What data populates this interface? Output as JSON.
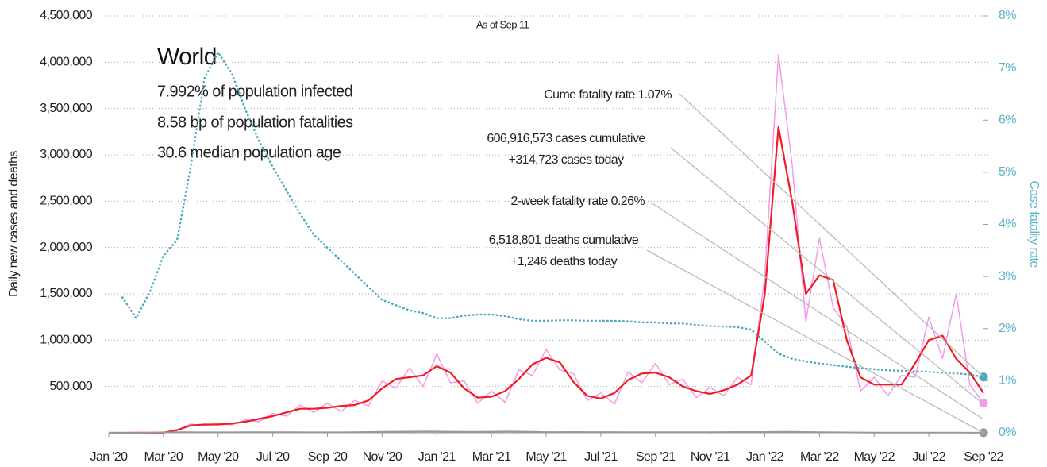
{
  "chart_data": {
    "type": "line",
    "subtitle": "As of Sep 11",
    "ylabel": "Daily new cases and deaths",
    "y2label": "Case fatality rate",
    "info": {
      "title": "World",
      "lines": [
        "7.992% of population infected",
        "8.58 bp of population fatalities",
        "30.6 median population age"
      ]
    },
    "annotations": [
      {
        "lines": [
          "Cume fatality rate 1.07%"
        ]
      },
      {
        "lines": [
          "606,916,573 cases cumulative",
          "+314,723 cases today"
        ]
      },
      {
        "lines": [
          "2-week fatality rate 0.26%"
        ]
      },
      {
        "lines": [
          "6,518,801 deaths cumulative",
          "+1,246 deaths today"
        ]
      }
    ],
    "x": [
      0,
      0.5,
      1,
      1.5,
      2,
      2.5,
      3,
      3.5,
      4,
      4.5,
      5,
      5.5,
      6,
      6.5,
      7,
      7.5,
      8,
      8.5,
      9,
      9.5,
      10,
      10.5,
      11,
      11.5,
      12,
      12.5,
      13,
      13.5,
      14,
      14.5,
      15,
      15.5,
      16,
      16.5,
      17,
      17.5,
      18,
      18.5,
      19,
      19.5,
      20,
      20.5,
      21,
      21.5,
      22,
      22.5,
      23,
      23.5,
      24,
      24.5,
      25,
      25.5,
      26,
      26.5,
      27,
      27.5,
      28,
      28.5,
      29,
      29.5,
      30,
      30.5,
      31,
      31.5,
      32
    ],
    "xlim": [
      0,
      32
    ],
    "xticks": [
      {
        "value": 0,
        "label": "Jan '20"
      },
      {
        "value": 2,
        "label": "Mar '20"
      },
      {
        "value": 4,
        "label": "May '20"
      },
      {
        "value": 6,
        "label": "Jul '20"
      },
      {
        "value": 8,
        "label": "Sep '20"
      },
      {
        "value": 10,
        "label": "Nov '20"
      },
      {
        "value": 12,
        "label": "Jan '21"
      },
      {
        "value": 14,
        "label": "Mar '21"
      },
      {
        "value": 16,
        "label": "May '21"
      },
      {
        "value": 18,
        "label": "Jul '21"
      },
      {
        "value": 20,
        "label": "Sep '21"
      },
      {
        "value": 22,
        "label": "Nov '21"
      },
      {
        "value": 24,
        "label": "Jan '22"
      },
      {
        "value": 26,
        "label": "Mar '22"
      },
      {
        "value": 28,
        "label": "May '22"
      },
      {
        "value": 30,
        "label": "Jul '22"
      },
      {
        "value": 32,
        "label": "Sep '22"
      }
    ],
    "ylim": [
      0,
      4500000
    ],
    "yticks": [
      {
        "value": 500000,
        "label": "500,000"
      },
      {
        "value": 1000000,
        "label": "1,000,000"
      },
      {
        "value": 1500000,
        "label": "1,500,000"
      },
      {
        "value": 2000000,
        "label": "2,000,000"
      },
      {
        "value": 2500000,
        "label": "2,500,000"
      },
      {
        "value": 3000000,
        "label": "3,000,000"
      },
      {
        "value": 3500000,
        "label": "3,500,000"
      },
      {
        "value": 4000000,
        "label": "4,000,000"
      },
      {
        "value": 4500000,
        "label": "4,500,000"
      }
    ],
    "y2lim": [
      0,
      8
    ],
    "y2ticks": [
      {
        "value": 0,
        "label": "0%"
      },
      {
        "value": 1,
        "label": "1%"
      },
      {
        "value": 2,
        "label": "2%"
      },
      {
        "value": 3,
        "label": "3%"
      },
      {
        "value": 4,
        "label": "4%"
      },
      {
        "value": 5,
        "label": "5%"
      },
      {
        "value": 6,
        "label": "6%"
      },
      {
        "value": 7,
        "label": "7%"
      },
      {
        "value": 8,
        "label": "8%"
      }
    ],
    "grid": true,
    "series": [
      {
        "color": "#f59ae8",
        "width": 1.5,
        "dash": "solid",
        "end_marker": true,
        "values": [
          0,
          0,
          1000,
          1000,
          3000,
          25000,
          95000,
          75000,
          105000,
          85000,
          140000,
          120000,
          210000,
          180000,
          300000,
          220000,
          320000,
          230000,
          350000,
          290000,
          560000,
          480000,
          700000,
          500000,
          850000,
          540000,
          560000,
          320000,
          450000,
          330000,
          680000,
          620000,
          900000,
          680000,
          640000,
          350000,
          430000,
          310000,
          660000,
          540000,
          750000,
          520000,
          580000,
          380000,
          490000,
          400000,
          600000,
          520000,
          1700000,
          4080000,
          2900000,
          1200000,
          2100000,
          1350000,
          1150000,
          450000,
          600000,
          400000,
          620000,
          600000,
          1250000,
          800000,
          1500000,
          520000,
          320000
        ]
      },
      {
        "color": "#ee1c25",
        "width": 2.2,
        "dash": "solid",
        "end_marker": false,
        "values": [
          0,
          0,
          1000,
          1000,
          2000,
          30000,
          80000,
          90000,
          90000,
          100000,
          120000,
          150000,
          180000,
          220000,
          260000,
          260000,
          270000,
          290000,
          300000,
          350000,
          480000,
          580000,
          600000,
          620000,
          720000,
          650000,
          480000,
          380000,
          390000,
          450000,
          580000,
          740000,
          810000,
          760000,
          550000,
          400000,
          370000,
          430000,
          570000,
          640000,
          650000,
          600000,
          500000,
          450000,
          420000,
          460000,
          520000,
          620000,
          1500000,
          3300000,
          2500000,
          1500000,
          1700000,
          1650000,
          1000000,
          600000,
          520000,
          520000,
          520000,
          750000,
          1000000,
          1050000,
          800000,
          650000,
          430000
        ]
      },
      {
        "color": "#999999",
        "width": 2,
        "dash": "solid",
        "end_marker": true,
        "values": [
          0,
          0,
          0,
          1000,
          5000,
          6000,
          6000,
          5000,
          5000,
          5000,
          6000,
          6000,
          6000,
          6000,
          6000,
          5000,
          5000,
          5000,
          7000,
          9000,
          11000,
          12000,
          13000,
          14000,
          14000,
          12000,
          10000,
          10000,
          12000,
          14000,
          13000,
          10000,
          8000,
          8000,
          9000,
          8000,
          8000,
          8000,
          7000,
          7000,
          7000,
          7000,
          7000,
          7000,
          7000,
          8000,
          9000,
          9000,
          9000,
          10000,
          10000,
          9000,
          7000,
          5000,
          4000,
          3000,
          2000,
          2000,
          2000,
          2000,
          2000,
          2000,
          1500,
          1200,
          1246
        ]
      },
      {
        "color": "#4aaabb",
        "width": 2.5,
        "dash": "dotted",
        "axis": "y2",
        "end_marker": true,
        "values": [
          null,
          2.6,
          2.2,
          2.7,
          3.4,
          3.7,
          5.1,
          6.8,
          7.3,
          6.9,
          6.2,
          5.6,
          5.1,
          4.65,
          4.2,
          3.8,
          3.55,
          3.3,
          3.05,
          2.8,
          2.55,
          2.45,
          2.35,
          2.3,
          2.2,
          2.2,
          2.25,
          2.27,
          2.27,
          2.24,
          2.18,
          2.15,
          2.15,
          2.16,
          2.16,
          2.15,
          2.15,
          2.15,
          2.14,
          2.12,
          2.12,
          2.1,
          2.1,
          2.07,
          2.05,
          2.04,
          2.03,
          1.98,
          1.75,
          1.52,
          1.42,
          1.37,
          1.33,
          1.3,
          1.27,
          1.24,
          1.22,
          1.2,
          1.19,
          1.18,
          1.17,
          1.15,
          1.14,
          1.12,
          1.07
        ]
      }
    ]
  }
}
